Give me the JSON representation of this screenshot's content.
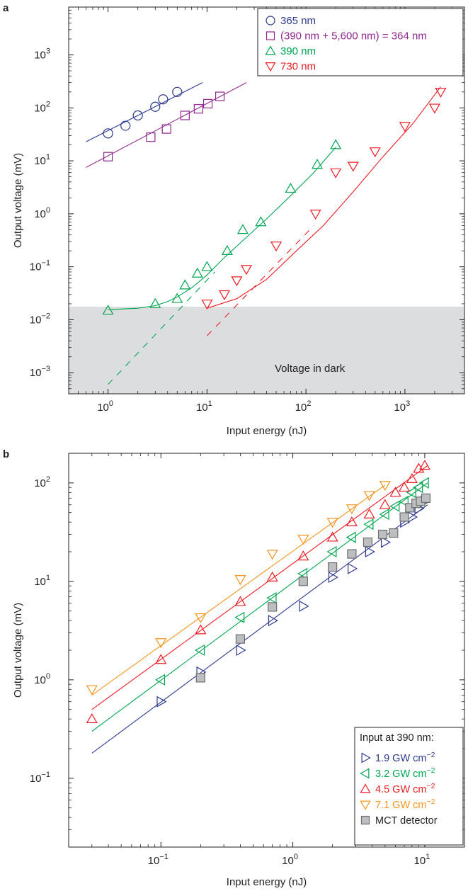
{
  "chart_data": [
    {
      "panel_label": "a",
      "type": "scatter",
      "xscale": "log",
      "yscale": "log",
      "xlim": [
        0.4,
        4000
      ],
      "ylim": [
        0.0004,
        8000
      ],
      "x_ticks": [
        {
          "v": 1,
          "b": "10",
          "e": "0"
        },
        {
          "v": 10,
          "b": "10",
          "e": "1"
        },
        {
          "v": 100,
          "b": "10",
          "e": "2"
        },
        {
          "v": 1000,
          "b": "10",
          "e": "3"
        }
      ],
      "y_ticks": [
        {
          "v": 0.001,
          "b": "10",
          "e": "−3"
        },
        {
          "v": 0.01,
          "b": "10",
          "e": "−2"
        },
        {
          "v": 0.1,
          "b": "10",
          "e": "−1"
        },
        {
          "v": 1,
          "b": "10",
          "e": "0"
        },
        {
          "v": 10,
          "b": "10",
          "e": "1"
        },
        {
          "v": 100,
          "b": "10",
          "e": "2"
        },
        {
          "v": 1000,
          "b": "10",
          "e": "3"
        }
      ],
      "xlabel": "Input energy (nJ)",
      "ylabel": "Output voltage (mV)",
      "annotation": "Voltage in dark",
      "dark_level": 0.015,
      "legend_position": "top-right",
      "series": [
        {
          "name": "365 nm",
          "color": "#2b3990",
          "marker": "circle",
          "x": [
            1.0,
            1.5,
            2.0,
            3.0,
            3.6,
            5.0
          ],
          "y": [
            33,
            46,
            72,
            105,
            145,
            200
          ],
          "fit": {
            "x": [
              0.6,
              9
            ],
            "y": [
              23,
              300
            ]
          }
        },
        {
          "name": "(390 nm + 5,600 nm) = 364 nm",
          "color": "#92278f",
          "marker": "square",
          "x": [
            1.0,
            2.7,
            3.9,
            6.0,
            8.2,
            10.2,
            13.5
          ],
          "y": [
            12,
            28,
            40,
            72,
            96,
            120,
            165
          ],
          "fit": {
            "x": [
              0.6,
              25
            ],
            "y": [
              7.5,
              300
            ]
          }
        },
        {
          "name": "390 nm",
          "color": "#00a651",
          "marker": "triangle-up",
          "x": [
            1.0,
            3.0,
            5.0,
            6.0,
            8.0,
            10,
            16,
            23,
            35,
            70,
            130,
            200
          ],
          "y": [
            0.015,
            0.02,
            0.025,
            0.045,
            0.075,
            0.1,
            0.2,
            0.5,
            0.7,
            3.0,
            8.5,
            20
          ],
          "fit": {
            "x": [
              1.0,
              2,
              3,
              4,
              5,
              7,
              10,
              15,
              25,
              40,
              70,
              120,
              200
            ],
            "y": [
              0.0155,
              0.0165,
              0.0185,
              0.022,
              0.027,
              0.04,
              0.07,
              0.15,
              0.36,
              0.8,
              2.2,
              6.0,
              18
            ]
          },
          "extrap": {
            "x": [
              1.0,
              12
            ],
            "y": [
              0.0006,
              0.08
            ]
          }
        },
        {
          "name": "730 nm",
          "color": "#ed1c24",
          "marker": "triangle-down",
          "x": [
            10,
            15,
            20,
            25,
            50,
            125,
            200,
            300,
            500,
            1000,
            2000,
            2300
          ],
          "y": [
            0.02,
            0.03,
            0.055,
            0.09,
            0.25,
            1.0,
            6.0,
            8.0,
            15,
            45,
            100,
            200
          ],
          "fit": {
            "x": [
              10,
              20,
              40,
              80,
              150,
              300,
              600,
              1200,
              2300
            ],
            "y": [
              0.0165,
              0.025,
              0.058,
              0.2,
              0.6,
              2.6,
              12,
              50,
              250
            ]
          },
          "extrap": {
            "x": [
              10,
              120
            ],
            "y": [
              0.005,
              0.6
            ]
          }
        }
      ]
    },
    {
      "panel_label": "b",
      "type": "scatter",
      "xscale": "log",
      "yscale": "log",
      "xlim": [
        0.02,
        20
      ],
      "ylim": [
        0.02,
        200
      ],
      "x_ticks": [
        {
          "v": 0.1,
          "b": "10",
          "e": "−1"
        },
        {
          "v": 1,
          "b": "10",
          "e": "0"
        },
        {
          "v": 10,
          "b": "10",
          "e": "1"
        }
      ],
      "y_ticks": [
        {
          "v": 0.1,
          "b": "10",
          "e": "−1"
        },
        {
          "v": 1,
          "b": "10",
          "e": "0"
        },
        {
          "v": 10,
          "b": "10",
          "e": "1"
        },
        {
          "v": 100,
          "b": "10",
          "e": "2"
        }
      ],
      "xlabel": "Input energy (nJ)",
      "ylabel": "Output voltage (mV)",
      "legend_title": "Input at 390 nm:",
      "legend_position": "bottom-right",
      "series": [
        {
          "name": "1.9 GW cm",
          "name_sup": "−2",
          "color": "#2b3990",
          "marker": "triangle-right",
          "x": [
            0.1,
            0.2,
            0.4,
            0.7,
            1.2,
            2.0,
            2.8,
            3.8,
            5.0,
            7.0,
            8.0,
            9.0,
            10
          ],
          "y": [
            0.6,
            1.2,
            2.0,
            4.0,
            5.6,
            11,
            13.5,
            20,
            25,
            40,
            45,
            55,
            65
          ],
          "fit": {
            "x": [
              0.03,
              10.5
            ],
            "y": [
              0.18,
              60
            ]
          }
        },
        {
          "name": "3.2 GW cm",
          "name_sup": "−2",
          "color": "#00a651",
          "marker": "triangle-left",
          "x": [
            0.1,
            0.2,
            0.4,
            0.7,
            1.2,
            2.0,
            2.8,
            3.8,
            5.0,
            6.0,
            7.0,
            8.0,
            9.0,
            10
          ],
          "y": [
            1.0,
            2.0,
            4.3,
            6.8,
            12,
            20,
            28,
            38,
            48,
            58,
            65,
            80,
            90,
            100
          ],
          "fit": {
            "x": [
              0.03,
              10.5
            ],
            "y": [
              0.3,
              100
            ]
          }
        },
        {
          "name": "4.5 GW cm",
          "name_sup": "−2",
          "color": "#ed1c24",
          "marker": "triangle-up",
          "x": [
            0.03,
            0.1,
            0.2,
            0.4,
            0.7,
            1.2,
            2.0,
            2.8,
            3.8,
            5.0,
            6.0,
            7.0,
            8.0,
            9.0,
            10
          ],
          "y": [
            0.4,
            1.6,
            3.2,
            6.2,
            11,
            18,
            28,
            40,
            48,
            60,
            80,
            90,
            110,
            140,
            150
          ],
          "fit": {
            "x": [
              0.03,
              10.5
            ],
            "y": [
              0.5,
              150
            ]
          }
        },
        {
          "name": "7.1 GW cm",
          "name_sup": "−2",
          "color": "#f7941d",
          "marker": "triangle-down",
          "x": [
            0.03,
            0.1,
            0.2,
            0.4,
            0.7,
            1.2,
            2.0,
            2.8,
            3.8,
            5.0
          ],
          "y": [
            0.8,
            2.4,
            4.3,
            10.5,
            19,
            27,
            40,
            55,
            75,
            95
          ],
          "fit": {
            "x": [
              0.03,
              5.0
            ],
            "y": [
              0.7,
              95
            ]
          }
        },
        {
          "name": "MCT detector",
          "color": "#6d6e71",
          "fill": "#bcbec0",
          "marker": "square-filled",
          "x": [
            0.2,
            0.4,
            0.7,
            1.2,
            2.0,
            2.8,
            3.7,
            4.8,
            5.8,
            7.0,
            7.7,
            8.6,
            9.3,
            10.2
          ],
          "y": [
            1.05,
            2.6,
            5.5,
            10,
            14,
            19,
            25,
            30,
            31,
            45,
            56,
            62,
            65,
            70
          ]
        }
      ]
    }
  ]
}
